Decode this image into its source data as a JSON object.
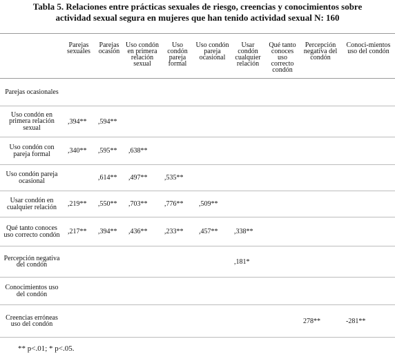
{
  "header": {
    "title_line1": "Tabla 5. Relaciones entre prácticas sexuales de riesgo, creencias y conocimientos sobre",
    "title_line2": "actividad sexual segura en mujeres que han tenido actividad sexual N: 160"
  },
  "table": {
    "columns": [
      "Parejas sexuales",
      "Parejas ocasión",
      "Uso condón en primera relación sexual",
      "Uso condón pareja formal",
      "Uso condón pareja ocasional",
      "Usar condón cualquier relación",
      "Qué tanto conoces uso correcto condón",
      "Percepción negativa del condón",
      "Conoci-mientos uso del condón"
    ],
    "rows": [
      {
        "label": "Parejas ocasionales",
        "cells": [
          null,
          null,
          null,
          null,
          null,
          null,
          null,
          null,
          null
        ]
      },
      {
        "label": "Uso condón en primera relación sexual",
        "cells": [
          ",394**",
          ",594**",
          null,
          null,
          null,
          null,
          null,
          null,
          null
        ]
      },
      {
        "label": "Uso condón con pareja formal",
        "cells": [
          ",340**",
          ",595**",
          ",638**",
          null,
          null,
          null,
          null,
          null,
          null
        ]
      },
      {
        "label": "Uso condón pareja ocasional",
        "cells": [
          null,
          ",614**",
          ",497**",
          ",535**",
          null,
          null,
          null,
          null,
          null
        ]
      },
      {
        "label": "Usar condón en cualquier relación",
        "cells": [
          ",219**",
          ",550**",
          ",703**",
          ",776**",
          ",509**",
          null,
          null,
          null,
          null
        ]
      },
      {
        "label": "Qué tanto conoces uso correcto condón",
        "cells": [
          ",217**",
          ",394**",
          ",436**",
          ",233**",
          ",457**",
          ",338**",
          null,
          null,
          null
        ]
      },
      {
        "label": "Percepción negativa del condón",
        "cells": [
          null,
          null,
          null,
          null,
          null,
          ",181*",
          null,
          null,
          null
        ]
      },
      {
        "label": "Conocimientos uso del condón",
        "cells": [
          null,
          null,
          null,
          null,
          null,
          null,
          null,
          null,
          null
        ]
      },
      {
        "label": "Creencias erróneas uso del condón",
        "cells": [
          null,
          null,
          null,
          null,
          null,
          null,
          null,
          "278**",
          "-281**"
        ]
      }
    ]
  },
  "footnote": "** p<.01; * p<.05."
}
